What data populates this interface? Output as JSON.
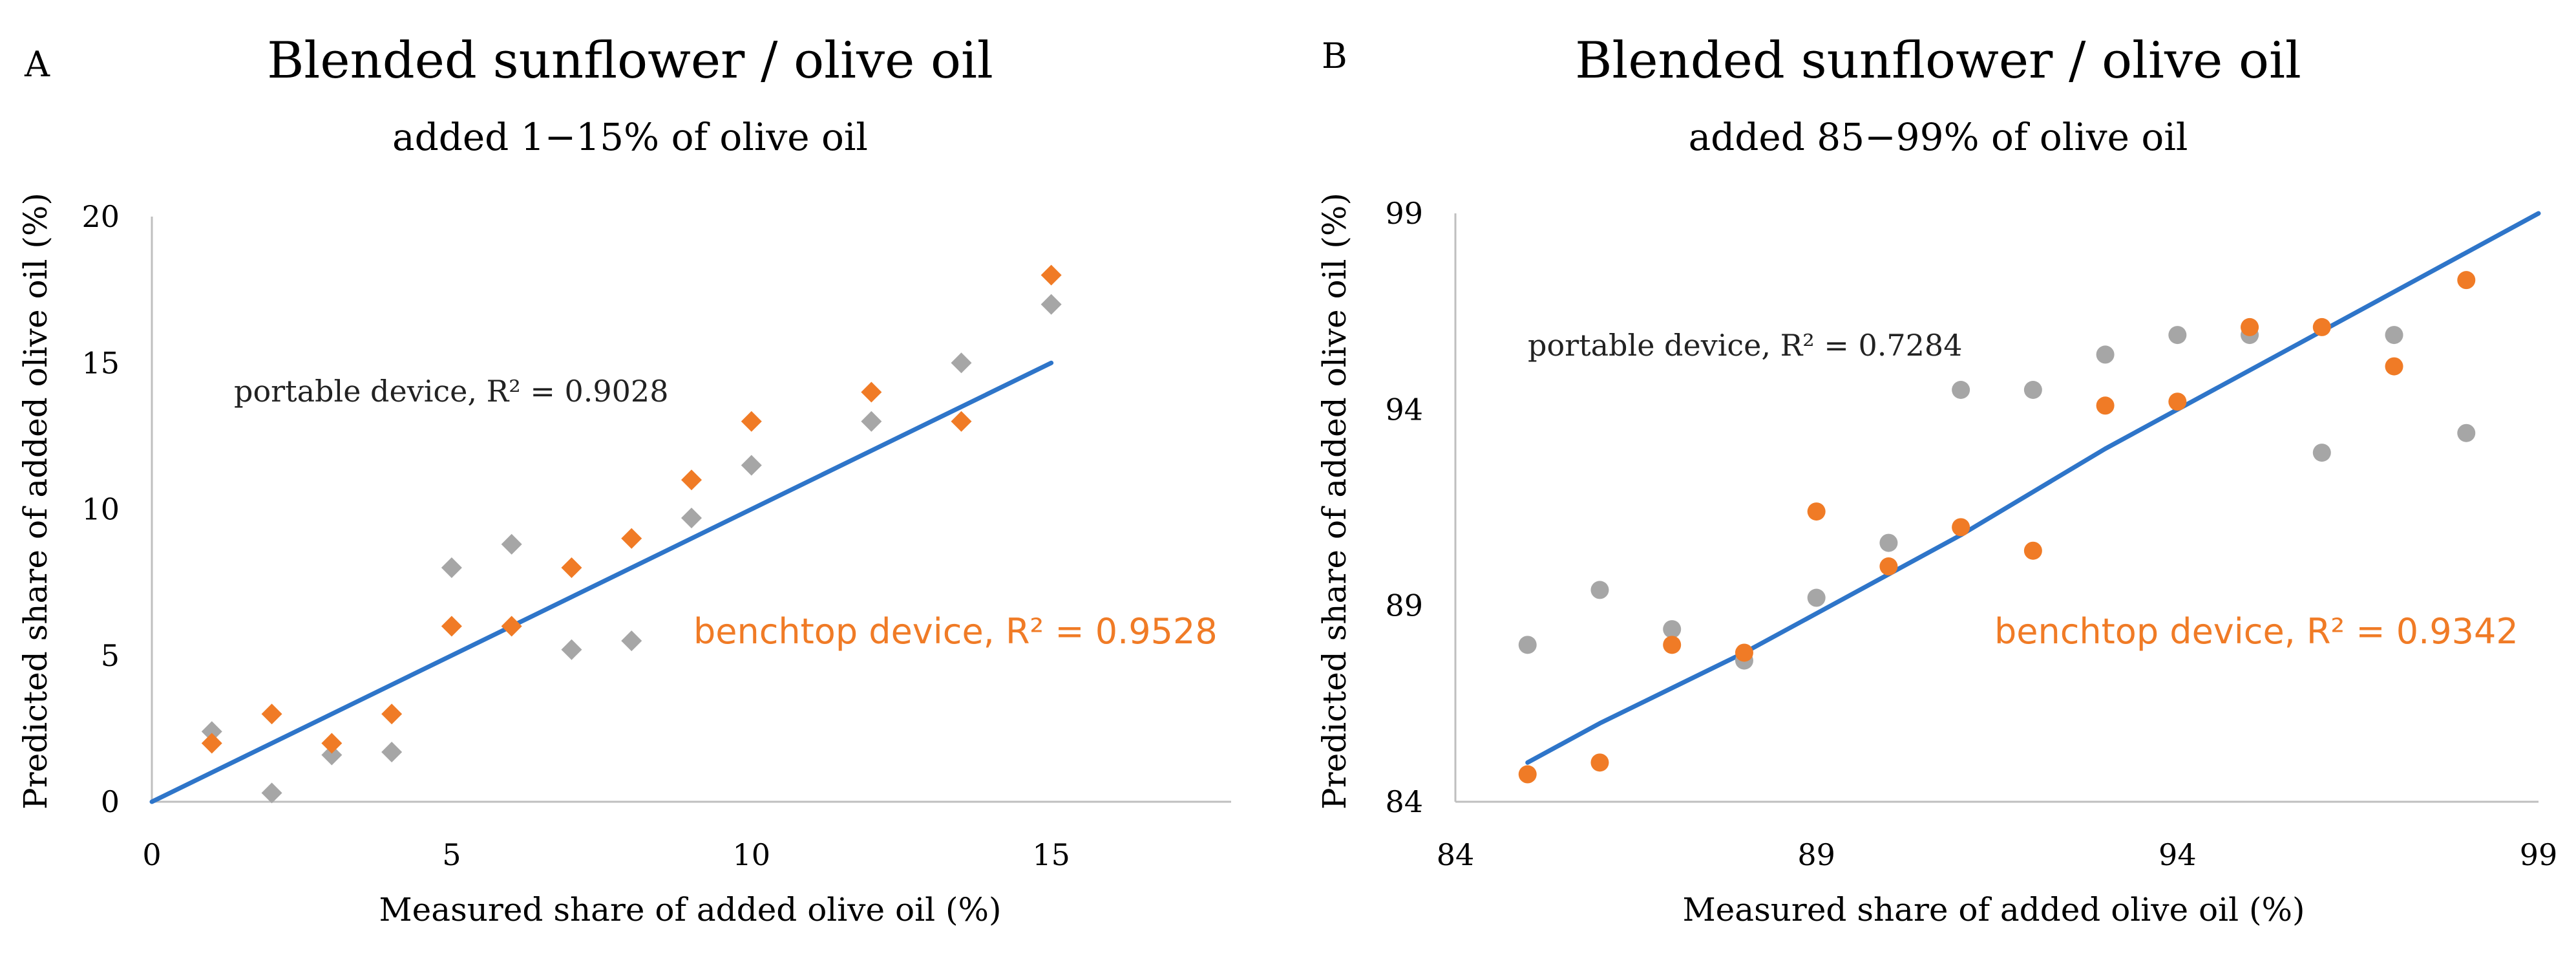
{
  "colors": {
    "portable": "#a6a6a6",
    "benchtop": "#f07b26",
    "trend": "#2e75c9",
    "axis": "#bfbfbf"
  },
  "chart_data": [
    {
      "panel": "A",
      "type": "scatter",
      "title": "Blended sunflower / olive oil",
      "subtitle": "added 1−15% of olive oil",
      "xlabel": "Measured share of added olive oil (%)",
      "ylabel": "Predicted share of added olive oil (%)",
      "xlim": [
        0,
        18
      ],
      "ylim": [
        0,
        20
      ],
      "xticks": [
        0,
        5,
        10,
        15
      ],
      "yticks": [
        0,
        5,
        10,
        15,
        20
      ],
      "xtick_labels": [
        "0",
        "5",
        "10",
        "15"
      ],
      "ytick_labels": [
        "0",
        "5",
        "10",
        "15",
        "20"
      ],
      "marker": "diamond",
      "grid": false,
      "series": [
        {
          "key": "portable",
          "marker_color": "#a6a6a6",
          "x": [
            1,
            2,
            3,
            4,
            5,
            6,
            7,
            8,
            9,
            10,
            12,
            13.5,
            15
          ],
          "y": [
            2.4,
            0.3,
            1.6,
            1.7,
            8.0,
            8.8,
            5.2,
            5.5,
            9.7,
            11.5,
            13.0,
            15.0,
            17.0
          ]
        },
        {
          "key": "benchtop",
          "marker_color": "#f07b26",
          "x": [
            1,
            2,
            3,
            4,
            5,
            6,
            7,
            8,
            9,
            10,
            12,
            13.5,
            15
          ],
          "y": [
            2.0,
            3.0,
            2.0,
            3.0,
            6.0,
            6.0,
            8.0,
            9.0,
            11.0,
            13.0,
            14.0,
            13.0,
            18.0
          ]
        }
      ],
      "trendline": {
        "x": [
          0,
          1,
          2,
          3,
          4,
          5,
          6,
          7,
          8,
          9,
          10,
          12,
          13.5,
          15
        ],
        "y": [
          0,
          1,
          2,
          3,
          4,
          5,
          6,
          7,
          8,
          9,
          10,
          12,
          13.5,
          15
        ]
      },
      "annotations": {
        "portable": "portable device, R² = 0.9028",
        "benchtop": "benchtop device, R² = 0.9528"
      }
    },
    {
      "panel": "B",
      "type": "scatter",
      "title": "Blended sunflower / olive oil",
      "subtitle": "added 85−99% of olive oil",
      "xlabel": "Measured share of added olive oil (%)",
      "ylabel": "Predicted share of added olive oil (%)",
      "xlim": [
        84,
        99
      ],
      "ylim": [
        84,
        99
      ],
      "xticks": [
        84,
        89,
        94,
        99
      ],
      "yticks": [
        84,
        89,
        94,
        99
      ],
      "xtick_labels": [
        "84",
        "89",
        "94",
        "99"
      ],
      "ytick_labels": [
        "84",
        "89",
        "94",
        "99"
      ],
      "marker": "circle",
      "grid": false,
      "series": [
        {
          "key": "portable",
          "marker_color": "#a6a6a6",
          "x": [
            85,
            86,
            87,
            88,
            89,
            90,
            91,
            92,
            93,
            94,
            95,
            96,
            97,
            98
          ],
          "y": [
            88.0,
            89.4,
            88.4,
            87.6,
            89.2,
            90.6,
            94.5,
            94.5,
            95.4,
            95.9,
            95.9,
            92.9,
            95.9,
            93.4
          ]
        },
        {
          "key": "benchtop",
          "marker_color": "#f07b26",
          "x": [
            85,
            86,
            87,
            88,
            89,
            90,
            91,
            92,
            93,
            94,
            95,
            96,
            97,
            98
          ],
          "y": [
            84.7,
            85.0,
            88.0,
            87.8,
            91.4,
            90.0,
            91.0,
            90.4,
            94.1,
            94.2,
            96.1,
            96.1,
            95.1,
            97.3
          ]
        }
      ],
      "trendline": {
        "x": [
          85,
          86,
          87,
          88,
          89,
          90,
          91,
          92,
          93,
          94,
          95,
          96,
          97,
          98,
          99
        ],
        "y": [
          85.0,
          86.0,
          86.9,
          87.8,
          88.8,
          89.8,
          90.8,
          91.9,
          93.0,
          94.0,
          95.0,
          96.0,
          97.0,
          98.0,
          99.0
        ]
      },
      "annotations": {
        "portable": "portable device, R² = 0.7284",
        "benchtop": "benchtop device, R² = 0.9342"
      }
    }
  ]
}
